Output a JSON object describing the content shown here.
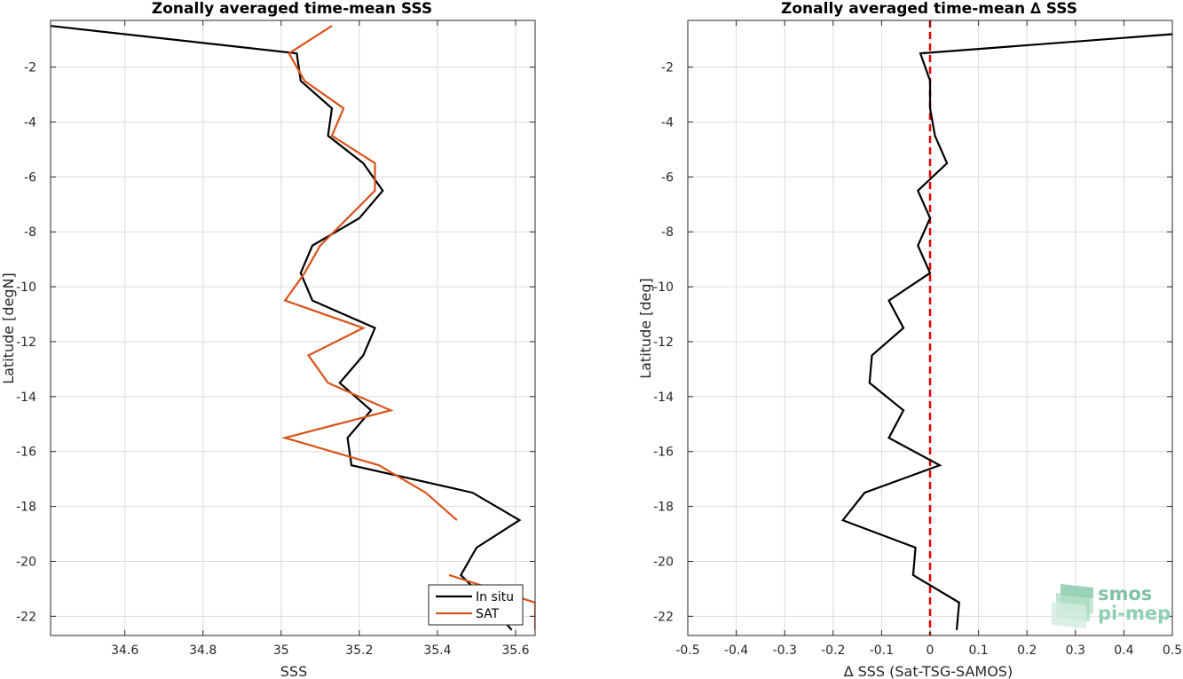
{
  "chart_data": [
    {
      "type": "line",
      "title": "Zonally averaged time-mean SSS",
      "xlabel": "SSS",
      "ylabel": "Latitude [degN]",
      "xlim": [
        34.41,
        35.65
      ],
      "ylim": [
        -22.7,
        -0.3
      ],
      "xticks": [
        34.6,
        34.8,
        35,
        35.2,
        35.4,
        35.6
      ],
      "yticks": [
        -2,
        -4,
        -6,
        -8,
        -10,
        -12,
        -14,
        -16,
        -18,
        -20,
        -22
      ],
      "grid": true,
      "legend_position": "bottom-right",
      "series": [
        {
          "name": "In situ",
          "color": "#000000",
          "points": [
            [
              34.41,
              -0.5
            ],
            [
              35.04,
              -1.5
            ],
            [
              35.05,
              -2.5
            ],
            [
              35.13,
              -3.5
            ],
            [
              35.12,
              -4.5
            ],
            [
              35.21,
              -5.5
            ],
            [
              35.26,
              -6.5
            ],
            [
              35.2,
              -7.5
            ],
            [
              35.08,
              -8.5
            ],
            [
              35.05,
              -9.5
            ],
            [
              35.08,
              -10.5
            ],
            [
              35.24,
              -11.5
            ],
            [
              35.21,
              -12.5
            ],
            [
              35.15,
              -13.5
            ],
            [
              35.23,
              -14.5
            ],
            [
              35.17,
              -15.5
            ],
            [
              35.18,
              -16.5
            ],
            [
              35.49,
              -17.5
            ],
            [
              35.61,
              -18.5
            ],
            [
              35.5,
              -19.5
            ],
            [
              35.46,
              -20.5
            ],
            [
              35.53,
              -21.5
            ],
            [
              35.59,
              -22.5
            ]
          ]
        },
        {
          "name": "SAT",
          "color": "#d95319",
          "points": [
            [
              35.13,
              -0.5
            ],
            [
              35.02,
              -1.5
            ],
            [
              35.06,
              -2.5
            ],
            [
              35.16,
              -3.5
            ],
            [
              35.13,
              -4.5
            ],
            [
              35.24,
              -5.5
            ],
            [
              35.24,
              -6.5
            ],
            [
              35.17,
              -7.5
            ],
            [
              35.1,
              -8.5
            ],
            [
              35.06,
              -9.5
            ],
            [
              35.01,
              -10.5
            ],
            [
              35.21,
              -11.5
            ],
            [
              35.07,
              -12.5
            ],
            [
              35.12,
              -13.5
            ],
            [
              35.28,
              -14.5
            ],
            [
              35.01,
              -15.5
            ],
            [
              35.25,
              -16.5
            ],
            [
              35.37,
              -17.5
            ],
            [
              35.45,
              -18.5
            ],
            [
              null,
              -19.5
            ],
            [
              35.43,
              -20.5
            ],
            [
              35.65,
              -21.5
            ],
            [
              35.65,
              -22.5
            ]
          ]
        }
      ]
    },
    {
      "type": "line",
      "title": "Zonally averaged time-mean ∆ SSS",
      "xlabel": "∆ SSS (Sat-TSG-SAMOS)",
      "ylabel": "Latitude [deg]",
      "xlim": [
        -0.5,
        0.5
      ],
      "ylim": [
        -22.7,
        -0.3
      ],
      "xticks": [
        -0.5,
        -0.4,
        -0.3,
        -0.2,
        -0.1,
        0,
        0.1,
        0.2,
        0.3,
        0.4,
        0.5
      ],
      "yticks": [
        -2,
        -4,
        -6,
        -8,
        -10,
        -12,
        -14,
        -16,
        -18,
        -20,
        -22
      ],
      "grid": true,
      "reference_line": {
        "x": 0,
        "color": "#e00000",
        "style": "dashed"
      },
      "series": [
        {
          "color": "#000000",
          "points": [
            [
              0.5,
              -0.8
            ],
            [
              -0.02,
              -1.5
            ],
            [
              0.0,
              -2.5
            ],
            [
              0.0,
              -3.5
            ],
            [
              0.01,
              -4.5
            ],
            [
              0.035,
              -5.5
            ],
            [
              -0.025,
              -6.5
            ],
            [
              0.0,
              -7.5
            ],
            [
              -0.025,
              -8.5
            ],
            [
              0.0,
              -9.5
            ],
            [
              -0.085,
              -10.5
            ],
            [
              -0.055,
              -11.5
            ],
            [
              -0.12,
              -12.5
            ],
            [
              -0.125,
              -13.5
            ],
            [
              -0.055,
              -14.5
            ],
            [
              -0.085,
              -15.5
            ],
            [
              0.02,
              -16.5
            ],
            [
              -0.135,
              -17.5
            ],
            [
              -0.18,
              -18.5
            ],
            [
              -0.03,
              -19.5
            ],
            [
              -0.035,
              -20.5
            ],
            [
              0.06,
              -21.5
            ],
            [
              0.055,
              -22.5
            ]
          ]
        }
      ]
    }
  ],
  "legend": {
    "items": [
      "In situ",
      "SAT"
    ]
  },
  "logo": {
    "line1": "smos",
    "line2": "pi-mep"
  }
}
